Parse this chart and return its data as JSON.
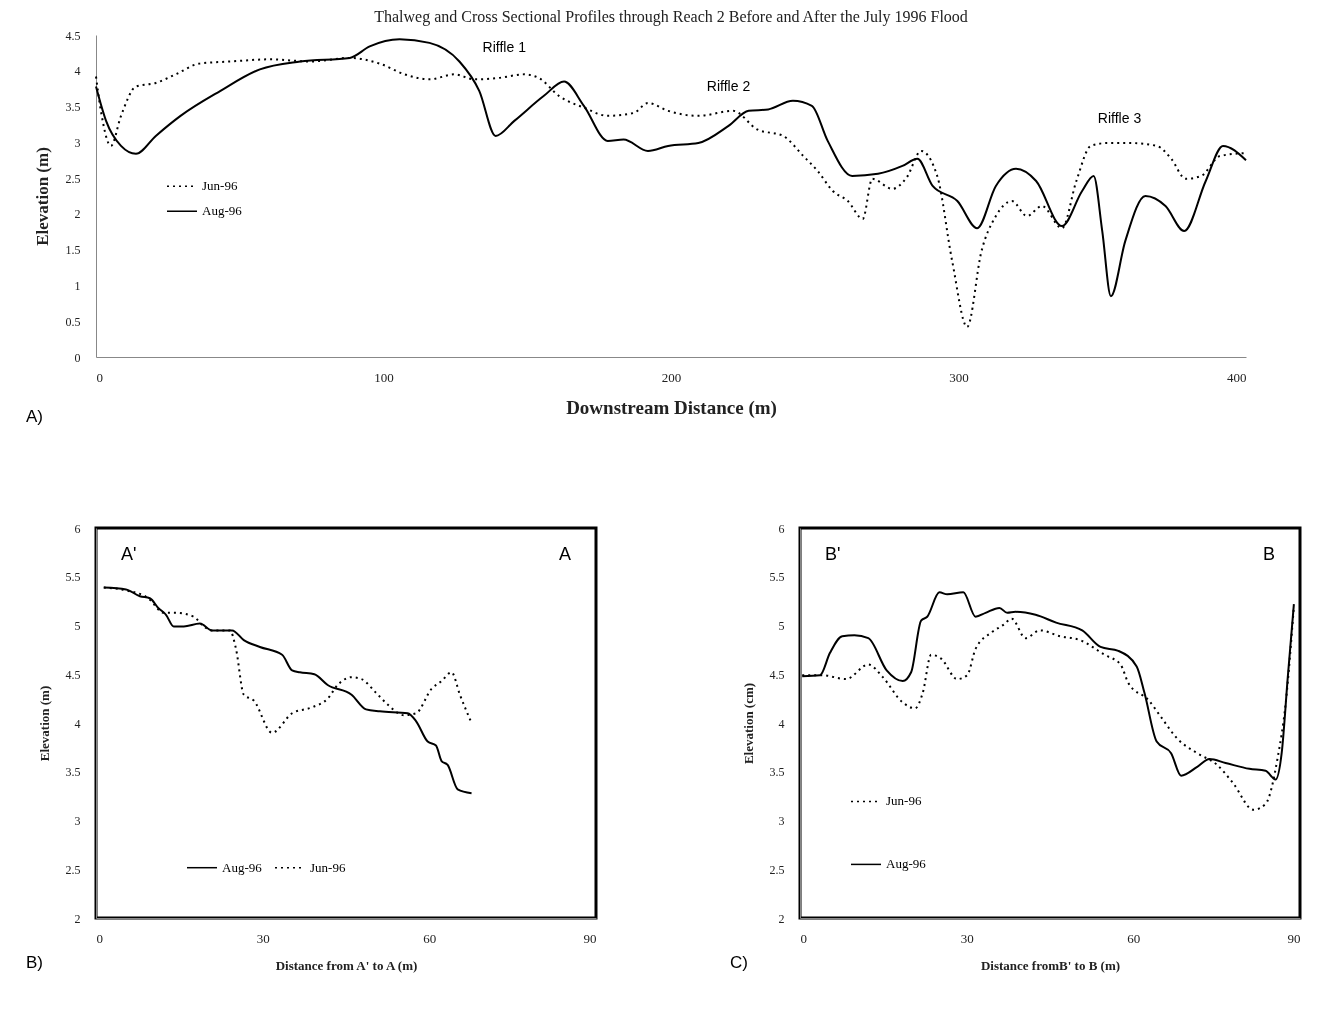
{
  "chart_data": [
    {
      "type": "line",
      "title": "Thalweg and Cross Sectional Profiles through Reach 2 Before and After the July 1996 Flood",
      "xlabel": "Downstream Distance (m)",
      "ylabel": "Elevation (m)",
      "xlim": [
        0,
        400
      ],
      "xticks": [
        0,
        100,
        200,
        300,
        400
      ],
      "ylim": [
        0,
        4.5
      ],
      "yticks": [
        0,
        0.5,
        1,
        1.5,
        2,
        2.5,
        3,
        3.5,
        4,
        4.5
      ],
      "grid": false,
      "legend": "left",
      "annotations": [
        "Riffle 1",
        "Riffle 2",
        "Riffle 3",
        "A)"
      ],
      "series": [
        {
          "name": "Jun-96",
          "color": "#000000",
          "line_style": "dotted",
          "x": [
            0,
            1.7,
            5.2,
            8.7,
            13.9,
            20.8,
            27.7,
            36,
            46.8,
            60.6,
            74.5,
            88.3,
            98.7,
            107.4,
            116,
            124.7,
            131.6,
            140,
            148.9,
            154,
            161,
            170,
            178,
            187,
            192,
            199,
            209.5,
            221.6,
            230,
            239,
            246,
            251,
            256.3,
            261.5,
            266.7,
            270,
            277,
            282,
            287,
            292.6,
            297.8,
            303,
            308,
            313,
            318.6,
            323.8,
            329,
            336,
            341,
            346,
            351.5,
            360,
            369,
            374,
            379,
            384.4,
            391,
            400
          ],
          "values": [
            3.92,
            3.44,
            2.95,
            3.37,
            3.78,
            3.83,
            3.95,
            4.1,
            4.13,
            4.16,
            4.13,
            4.18,
            4.1,
            3.95,
            3.88,
            3.95,
            3.88,
            3.9,
            3.95,
            3.9,
            3.65,
            3.48,
            3.37,
            3.41,
            3.55,
            3.44,
            3.37,
            3.44,
            3.18,
            3.09,
            2.81,
            2.6,
            2.32,
            2.18,
            1.93,
            2.49,
            2.35,
            2.51,
            2.88,
            2.53,
            1.34,
            0.42,
            1.48,
            1.97,
            2.18,
            1.97,
            2.11,
            1.8,
            2.46,
            2.95,
            2.99,
            2.99,
            2.95,
            2.77,
            2.49,
            2.53,
            2.81,
            2.85
          ]
        },
        {
          "name": "Aug-96",
          "color": "#000000",
          "line_style": "solid",
          "x": [
            0,
            3.5,
            8.7,
            13.9,
            20.8,
            29.4,
            43.3,
            57,
            71,
            88.3,
            95.2,
            105.6,
            116,
            126.4,
            133.3,
            139,
            145.5,
            155.8,
            162.8,
            169.7,
            178,
            183.5,
            192,
            199,
            209.5,
            220,
            227,
            233.8,
            242.4,
            249,
            254.5,
            263,
            272,
            280.5,
            285.7,
            291,
            299.6,
            306.5,
            313,
            320,
            327,
            336,
            343,
            347,
            350,
            353,
            358,
            365,
            372,
            378.5,
            386,
            392,
            400
          ],
          "values": [
            3.78,
            3.3,
            2.95,
            2.84,
            3.09,
            3.37,
            3.72,
            4.02,
            4.13,
            4.18,
            4.34,
            4.44,
            4.39,
            4.13,
            3.72,
            3.09,
            3.3,
            3.65,
            3.85,
            3.51,
            3.02,
            3.04,
            2.88,
            2.95,
            2.99,
            3.23,
            3.44,
            3.46,
            3.58,
            3.51,
            3.02,
            2.53,
            2.56,
            2.67,
            2.77,
            2.39,
            2.18,
            1.8,
            2.39,
            2.63,
            2.46,
            1.83,
            2.32,
            2.53,
            1.76,
            0.85,
            1.62,
            2.25,
            2.11,
            1.76,
            2.46,
            2.95,
            2.75
          ]
        }
      ]
    },
    {
      "type": "line",
      "xlabel": "Distance  from A' to A (m)",
      "ylabel": "Elevation (m)",
      "xlim": [
        0,
        90
      ],
      "xticks": [
        0,
        30,
        60,
        90
      ],
      "ylim": [
        2,
        6
      ],
      "yticks": [
        2,
        2.5,
        3,
        3.5,
        4,
        4.5,
        5,
        5.5,
        6
      ],
      "grid": false,
      "legend": "bottom",
      "annotations": [
        "A'",
        "A",
        "B)"
      ],
      "series": [
        {
          "name": "Aug-96",
          "color": "#000000",
          "line_style": "solid",
          "x": [
            1.4,
            5.4,
            7.9,
            9.7,
            11.2,
            12.6,
            14,
            15.8,
            18.7,
            20.9,
            24.5,
            26.6,
            29.5,
            33.5,
            35.3,
            36.7,
            39.3,
            41.7,
            46,
            48.6,
            51.1,
            56.1,
            57.6,
            59.7,
            61.2,
            62.2,
            63.3,
            65.1,
            67.6
          ],
          "values": [
            5.39,
            5.37,
            5.3,
            5.28,
            5.18,
            5.11,
            4.99,
            4.99,
            5.02,
            4.95,
            4.95,
            4.85,
            4.78,
            4.7,
            4.54,
            4.52,
            4.5,
            4.39,
            4.29,
            4.14,
            4.12,
            4.1,
            4.02,
            3.81,
            3.77,
            3.61,
            3.57,
            3.32,
            3.28
          ]
        },
        {
          "name": "Jun-96",
          "color": "#000000",
          "line_style": "dotted",
          "x": [
            1.4,
            5.4,
            9.4,
            12.2,
            14.4,
            17.6,
            19.4,
            20.9,
            24.1,
            25.2,
            26.6,
            28.4,
            31.7,
            35.3,
            38.8,
            41.7,
            43.5,
            46,
            47.8,
            50.4,
            52.5,
            55.4,
            57.6,
            60.4,
            62.2,
            64,
            65.5,
            67.6
          ],
          "values": [
            5.39,
            5.36,
            5.28,
            5.13,
            5.13,
            5.09,
            4.99,
            4.95,
            4.95,
            4.76,
            4.29,
            4.23,
            3.9,
            4.1,
            4.16,
            4.25,
            4.39,
            4.47,
            4.45,
            4.31,
            4.19,
            4.08,
            4.1,
            4.35,
            4.43,
            4.52,
            4.29,
            4.0
          ]
        }
      ]
    },
    {
      "type": "line",
      "xlabel": "Distance  fromB' to B (m)",
      "ylabel": "Elevation (cm)",
      "xlim": [
        0,
        90
      ],
      "xticks": [
        0,
        30,
        60,
        90
      ],
      "ylim": [
        2,
        6
      ],
      "yticks": [
        2,
        2.5,
        3,
        3.5,
        4,
        4.5,
        5,
        5.5,
        6
      ],
      "grid": false,
      "legend": "bottom left",
      "annotations": [
        "B'",
        "B",
        "C)"
      ],
      "series": [
        {
          "name": "Jun-96",
          "color": "#000000",
          "line_style": "dotted",
          "x": [
            0.4,
            4,
            8.3,
            12.3,
            14.9,
            18.5,
            20.7,
            22.1,
            23.6,
            25.4,
            28.3,
            30.1,
            31.6,
            34.5,
            36.7,
            38.1,
            40.6,
            43.2,
            46.8,
            50.4,
            54.8,
            57.7,
            59.1,
            62.8,
            65,
            67.9,
            71.5,
            75.1,
            78,
            81.6,
            83.8,
            86,
            87.4,
            88.9
          ],
          "values": [
            4.49,
            4.49,
            4.45,
            4.6,
            4.47,
            4.21,
            4.15,
            4.31,
            4.7,
            4.66,
            4.45,
            4.49,
            4.76,
            4.93,
            5.01,
            5.07,
            4.87,
            4.95,
            4.89,
            4.85,
            4.7,
            4.6,
            4.41,
            4.23,
            4.06,
            3.84,
            3.69,
            3.57,
            3.38,
            3.11,
            3.17,
            3.65,
            4.19,
            5.2
          ]
        },
        {
          "name": "Aug-96",
          "color": "#000000",
          "line_style": "solid",
          "x": [
            0.4,
            3.6,
            5.4,
            7.6,
            9.8,
            12.3,
            15.6,
            18.5,
            20,
            21.8,
            22.9,
            25.1,
            26.5,
            29.4,
            31.6,
            33.4,
            35.9,
            37.3,
            38.8,
            42.4,
            46.1,
            50.8,
            54.1,
            57.3,
            60.6,
            62,
            64.2,
            66.8,
            68.6,
            71.5,
            73.7,
            76.6,
            80.9,
            83.8,
            85.6,
            86.7,
            87.8,
            88.9
          ],
          "values": [
            4.48,
            4.49,
            4.72,
            4.89,
            4.9,
            4.87,
            4.54,
            4.43,
            4.52,
            5.05,
            5.09,
            5.34,
            5.32,
            5.34,
            5.09,
            5.13,
            5.18,
            5.13,
            5.14,
            5.11,
            5.03,
            4.95,
            4.78,
            4.74,
            4.58,
            4.31,
            3.81,
            3.69,
            3.46,
            3.55,
            3.63,
            3.59,
            3.53,
            3.51,
            3.42,
            3.69,
            4.47,
            5.22
          ]
        }
      ]
    }
  ]
}
